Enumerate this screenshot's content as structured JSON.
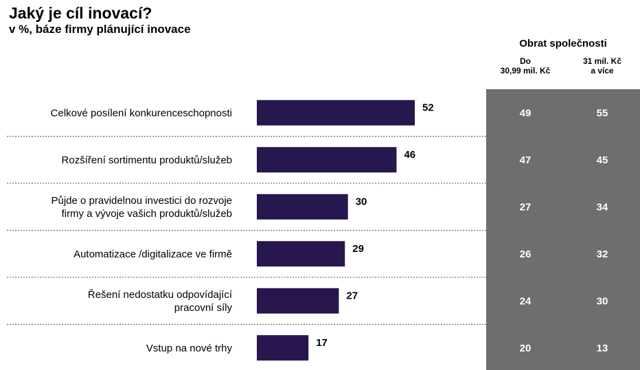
{
  "title": "Jaký je cíl inovací?",
  "subtitle": "v %, báze firmy plánující inovace",
  "chart_data": {
    "type": "bar",
    "orientation": "horizontal",
    "title": "Jaký je cíl inovací?",
    "subtitle": "v %, báze firmy plánující inovace",
    "categories": [
      [
        "Celkové posílení konkurenceschopnosti"
      ],
      [
        "Rozšíření sortimentu produktů/služeb"
      ],
      [
        "Půjde o pravidelnou investici do rozvoje",
        "firmy a vývoje vašich produktů/služeb"
      ],
      [
        "Automatizace /digitalizace ve firmě"
      ],
      [
        "Řešení nedostatku odpovídající",
        "pracovní síly"
      ],
      [
        "Vstup na nové trhy"
      ]
    ],
    "values": [
      52,
      46,
      30,
      29,
      27,
      17
    ],
    "bar_color": "#27174e",
    "xlim": [
      0,
      52
    ],
    "table": {
      "group_header": "Obrat společnosti",
      "panel_color": "#6e6e6e",
      "columns": [
        {
          "header": [
            "Do",
            "30,99 mil. Kč"
          ],
          "values": [
            49,
            47,
            27,
            26,
            24,
            20
          ]
        },
        {
          "header": [
            "31 mil. Kč",
            "a více"
          ],
          "values": [
            55,
            45,
            34,
            32,
            30,
            13
          ]
        }
      ]
    }
  }
}
